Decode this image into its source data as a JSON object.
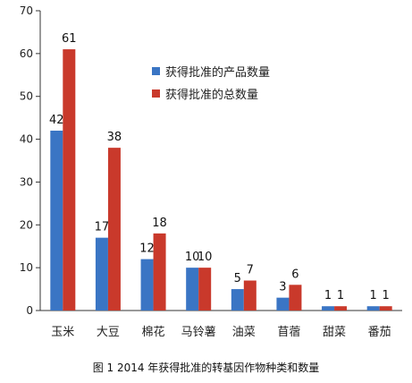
{
  "chart_data": {
    "type": "bar",
    "categories": [
      "玉米",
      "大豆",
      "棉花",
      "马铃薯",
      "油菜",
      "苜蓿",
      "甜菜",
      "番茄"
    ],
    "series": [
      {
        "name": "获得批准的产品数量",
        "color": "#3a75c4",
        "values": [
          42,
          17,
          12,
          10,
          5,
          3,
          1,
          1
        ]
      },
      {
        "name": "获得批准的总数量",
        "color": "#c9392b",
        "values": [
          61,
          38,
          18,
          10,
          7,
          6,
          1,
          1
        ]
      }
    ],
    "yticks": [
      0,
      10,
      20,
      30,
      40,
      50,
      60,
      70
    ],
    "ylim": [
      0,
      70
    ],
    "legend_position": "top-center",
    "grid": false
  },
  "caption": "图 1 2014 年获得批准的转基因作物种类和数量"
}
